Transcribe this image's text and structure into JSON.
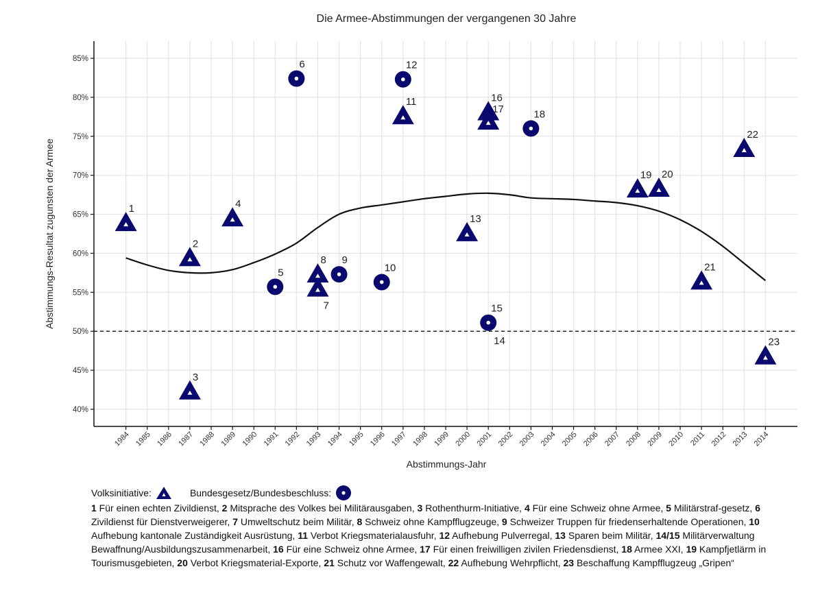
{
  "chart_data": {
    "type": "scatter",
    "title": "Die Armee-Abstimmungen der vergangenen 30 Jahre",
    "xlabel": "Abstimmungs-Jahr",
    "ylabel": "Abstimmungs-Resultat zugunsten der Armee",
    "xlim": [
      1982.5,
      2015.5
    ],
    "ylim": [
      37.8,
      87.2
    ],
    "x_ticks": [
      1984,
      1985,
      1986,
      1987,
      1988,
      1989,
      1990,
      1991,
      1992,
      1993,
      1994,
      1995,
      1996,
      1997,
      1998,
      1999,
      2000,
      2001,
      2002,
      2003,
      2004,
      2005,
      2006,
      2007,
      2008,
      2009,
      2010,
      2011,
      2012,
      2013,
      2014
    ],
    "y_ticks": [
      {
        "value": 40,
        "label": "40%"
      },
      {
        "value": 45,
        "label": "45%"
      },
      {
        "value": 50,
        "label": "50%"
      },
      {
        "value": 55,
        "label": "55%"
      },
      {
        "value": 60,
        "label": "60%"
      },
      {
        "value": 65,
        "label": "65%"
      },
      {
        "value": 70,
        "label": "70%"
      },
      {
        "value": 75,
        "label": "75%"
      },
      {
        "value": 80,
        "label": "80%"
      },
      {
        "value": 85,
        "label": "85%"
      }
    ],
    "grid": true,
    "reference_line": {
      "value": 50,
      "style": "dashed"
    },
    "marker_color": "#0a0a6e",
    "series": [
      {
        "name": "Volksinitiative",
        "shape": "triangle",
        "points": [
          {
            "id": "1",
            "year": 1984,
            "value": 63.9
          },
          {
            "id": "2",
            "year": 1987,
            "value": 59.4
          },
          {
            "id": "3",
            "year": 1987,
            "value": 42.3
          },
          {
            "id": "4",
            "year": 1989,
            "value": 64.5
          },
          {
            "id": "7",
            "year": 1993,
            "value": 55.5
          },
          {
            "id": "8",
            "year": 1993,
            "value": 57.3
          },
          {
            "id": "11",
            "year": 1997,
            "value": 77.6
          },
          {
            "id": "13",
            "year": 2000,
            "value": 62.6
          },
          {
            "id": "16",
            "year": 2001,
            "value": 78.1
          },
          {
            "id": "17",
            "year": 2001,
            "value": 76.9
          },
          {
            "id": "19",
            "year": 2008,
            "value": 68.2
          },
          {
            "id": "20",
            "year": 2009,
            "value": 68.3
          },
          {
            "id": "21",
            "year": 2011,
            "value": 56.4
          },
          {
            "id": "22",
            "year": 2013,
            "value": 73.4
          },
          {
            "id": "23",
            "year": 2014,
            "value": 46.8
          }
        ]
      },
      {
        "name": "Bundesgesetz/Bundesbeschluss",
        "shape": "circle",
        "points": [
          {
            "id": "5",
            "year": 1991,
            "value": 55.7
          },
          {
            "id": "6",
            "year": 1992,
            "value": 82.4
          },
          {
            "id": "9",
            "year": 1994,
            "value": 57.3
          },
          {
            "id": "10",
            "year": 1996,
            "value": 56.3
          },
          {
            "id": "12",
            "year": 1997,
            "value": 82.3
          },
          {
            "id": "15",
            "year": 2001,
            "value": 51.1
          },
          {
            "id": "14",
            "year": 2001,
            "value": 51.0
          },
          {
            "id": "18",
            "year": 2003,
            "value": 76.0
          }
        ]
      }
    ],
    "smooth": {
      "name": "Trend",
      "x": [
        1984,
        1985,
        1986,
        1987,
        1988,
        1989,
        1990,
        1991,
        1992,
        1993,
        1994,
        1995,
        1996,
        1997,
        1998,
        1999,
        2000,
        2001,
        2002,
        2003,
        2004,
        2005,
        2006,
        2007,
        2008,
        2009,
        2010,
        2011,
        2012,
        2013,
        2014
      ],
      "y": [
        59.4,
        58.5,
        57.8,
        57.5,
        57.5,
        57.9,
        58.8,
        59.9,
        61.3,
        63.3,
        65.0,
        65.8,
        66.2,
        66.6,
        67.0,
        67.3,
        67.6,
        67.7,
        67.5,
        67.1,
        67.0,
        66.9,
        66.7,
        66.5,
        66.1,
        65.4,
        64.3,
        62.8,
        60.9,
        58.7,
        56.5
      ]
    },
    "point_labels": [
      {
        "text": "1",
        "year": 1984,
        "value": 63.9,
        "pos": "top-right"
      },
      {
        "text": "2",
        "year": 1987,
        "value": 59.4,
        "pos": "top-right"
      },
      {
        "text": "3",
        "year": 1987,
        "value": 42.3,
        "pos": "top-right"
      },
      {
        "text": "4",
        "year": 1989,
        "value": 64.5,
        "pos": "top-right"
      },
      {
        "text": "5",
        "year": 1991,
        "value": 55.7,
        "pos": "top-right"
      },
      {
        "text": "6",
        "year": 1992,
        "value": 82.4,
        "pos": "top-right"
      },
      {
        "text": "7",
        "year": 1993,
        "value": 55.5,
        "pos": "bottom-right"
      },
      {
        "text": "8",
        "year": 1993,
        "value": 57.3,
        "pos": "top-right"
      },
      {
        "text": "9",
        "year": 1994,
        "value": 57.3,
        "pos": "top-right"
      },
      {
        "text": "10",
        "year": 1996,
        "value": 56.3,
        "pos": "top-right"
      },
      {
        "text": "11",
        "year": 1997,
        "value": 77.6,
        "pos": "top-right"
      },
      {
        "text": "12",
        "year": 1997,
        "value": 82.3,
        "pos": "top-right"
      },
      {
        "text": "13",
        "year": 2000,
        "value": 62.6,
        "pos": "top-right"
      },
      {
        "text": "14",
        "year": 2001,
        "value": 51.0,
        "pos": "bottom-right"
      },
      {
        "text": "15",
        "year": 2001,
        "value": 51.1,
        "pos": "top-right"
      },
      {
        "text": "16",
        "year": 2001,
        "value": 78.1,
        "pos": "top-right"
      },
      {
        "text": "17",
        "year": 2001,
        "value": 76.9,
        "pos": "right"
      },
      {
        "text": "18",
        "year": 2003,
        "value": 76.0,
        "pos": "top-right"
      },
      {
        "text": "19",
        "year": 2008,
        "value": 68.2,
        "pos": "top-right"
      },
      {
        "text": "20",
        "year": 2009,
        "value": 68.3,
        "pos": "top-right"
      },
      {
        "text": "21",
        "year": 2011,
        "value": 56.4,
        "pos": "top-right"
      },
      {
        "text": "22",
        "year": 2013,
        "value": 73.4,
        "pos": "top-right"
      },
      {
        "text": "23",
        "year": 2014,
        "value": 46.8,
        "pos": "top-right"
      }
    ]
  },
  "legend": {
    "initiative_label": "Volksinitiative:",
    "law_label": "Bundesgesetz/Bundesbeschluss:",
    "entries": [
      {
        "num": "1",
        "text": " Für einen echten Zivildienst, "
      },
      {
        "num": "2",
        "text": " Mitsprache des Volkes bei Militärausgaben, "
      },
      {
        "num": "3",
        "text": " Rothenthurm-Initiative, "
      },
      {
        "num": "4",
        "text": " Für eine Schweiz ohne Armee, "
      },
      {
        "num": "5",
        "text": " Militärstraf-gesetz, "
      },
      {
        "num": "6",
        "text": " Zivildienst für Dienstverweigerer, "
      },
      {
        "num": "7",
        "text": " Umweltschutz beim Militär, "
      },
      {
        "num": "8",
        "text": " Schweiz ohne Kampfflugzeuge, "
      },
      {
        "num": "9",
        "text": " Schweizer Truppen für friedenserhaltende Operationen, "
      },
      {
        "num": "10",
        "text": " Aufhebung kantonale Zuständigkeit Ausrüstung, "
      },
      {
        "num": "11",
        "text": " Verbot Kriegsmaterialausfuhr, "
      },
      {
        "num": "12",
        "text": " Aufhebung Pulverregal, "
      },
      {
        "num": "13",
        "text": " Sparen beim Militär, "
      },
      {
        "num": "14/15",
        "text": " Militärverwaltung Bewaffnung/Ausbildungszusammenarbeit, "
      },
      {
        "num": "16",
        "text": " Für eine Schweiz ohne Armee, "
      },
      {
        "num": "17",
        "text": " Für einen freiwilligen zivilen Friedensdienst, "
      },
      {
        "num": "18",
        "text": " Armee XXI, "
      },
      {
        "num": "19",
        "text": " Kampfjetlärm in Tourismusgebieten, "
      },
      {
        "num": "20",
        "text": " Verbot Kriegsmaterial-Exporte, "
      },
      {
        "num": "21",
        "text": " Schutz vor Waffengewalt, "
      },
      {
        "num": "22",
        "text": " Aufhebung Wehrpflicht, "
      },
      {
        "num": "23",
        "text": " Beschaffung Kampfflugzeug „Gripen“"
      }
    ]
  }
}
